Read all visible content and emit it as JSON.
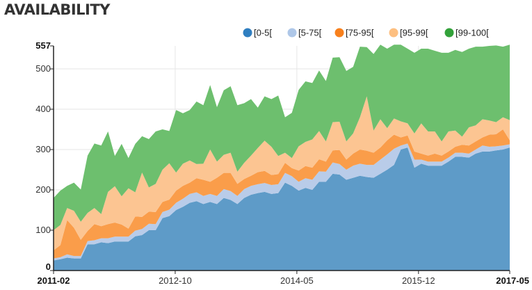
{
  "header": {
    "title": "AVAILABILITY"
  },
  "chart_data": {
    "type": "area",
    "stacked": true,
    "title": "AVAILABILITY",
    "ylim": [
      0,
      557
    ],
    "yticks": [
      0,
      100,
      200,
      300,
      400,
      500,
      557
    ],
    "ytick_labels": [
      "0",
      "100",
      "200",
      "300",
      "400",
      "500",
      "557"
    ],
    "xlim": [
      0,
      75
    ],
    "xticks": [
      {
        "pos": 0,
        "label": "2011-02",
        "bold": true
      },
      {
        "pos": 20,
        "label": "2012-10",
        "bold": false
      },
      {
        "pos": 40,
        "label": "2014-05",
        "bold": false
      },
      {
        "pos": 60,
        "label": "2015-12",
        "bold": false
      },
      {
        "pos": 75,
        "label": "2017-05",
        "bold": true
      }
    ],
    "grid": true,
    "legend_position": "top-right",
    "series": [
      {
        "name": "[0-5[",
        "color": "#5e9bc8",
        "values": [
          25,
          28,
          32,
          30,
          30,
          65,
          65,
          70,
          68,
          72,
          72,
          72,
          85,
          88,
          100,
          100,
          130,
          135,
          150,
          158,
          168,
          172,
          165,
          170,
          165,
          180,
          175,
          165,
          180,
          188,
          192,
          195,
          190,
          192,
          218,
          210,
          198,
          205,
          200,
          220,
          220,
          240,
          238,
          225,
          230,
          235,
          232,
          230,
          240,
          250,
          262,
          300,
          305,
          255,
          265,
          260,
          260,
          260,
          270,
          282,
          282,
          280,
          290,
          295,
          295,
          298,
          300,
          305
        ]
      },
      {
        "name": "[5-75[",
        "color": "#b9cce9",
        "values": [
          5,
          5,
          8,
          6,
          6,
          8,
          10,
          10,
          12,
          12,
          12,
          12,
          14,
          15,
          16,
          15,
          15,
          16,
          18,
          20,
          22,
          22,
          20,
          20,
          20,
          22,
          22,
          20,
          22,
          22,
          22,
          22,
          22,
          22,
          24,
          24,
          22,
          24,
          25,
          26,
          25,
          28,
          26,
          25,
          30,
          30,
          30,
          32,
          35,
          38,
          40,
          10,
          10,
          20,
          10,
          10,
          10,
          10,
          10,
          10,
          10,
          10,
          10,
          15,
          12,
          10,
          10,
          8
        ]
      },
      {
        "name": "[75-95[",
        "color": "#fa9d4a",
        "values": [
          20,
          30,
          85,
          70,
          40,
          25,
          40,
          30,
          35,
          35,
          30,
          20,
          35,
          30,
          30,
          30,
          25,
          25,
          30,
          32,
          28,
          35,
          40,
          30,
          45,
          40,
          45,
          30,
          25,
          25,
          30,
          30,
          25,
          25,
          25,
          20,
          28,
          30,
          30,
          30,
          25,
          30,
          35,
          25,
          30,
          35,
          35,
          30,
          30,
          35,
          35,
          20,
          20,
          20,
          15,
          15,
          20,
          15,
          15,
          15,
          20,
          20,
          20,
          20,
          30,
          30,
          40,
          10
        ]
      },
      {
        "name": "[95-99[",
        "color": "#fcc592",
        "values": [
          50,
          50,
          30,
          42,
          45,
          45,
          40,
          30,
          80,
          90,
          70,
          100,
          60,
          110,
          60,
          70,
          80,
          90,
          45,
          55,
          55,
          35,
          40,
          80,
          40,
          45,
          50,
          30,
          40,
          50,
          60,
          75,
          70,
          45,
          25,
          25,
          60,
          60,
          70,
          70,
          50,
          70,
          70,
          45,
          50,
          80,
          135,
          55,
          70,
          30,
          40,
          40,
          30,
          45,
          75,
          60,
          55,
          35,
          50,
          40,
          20,
          45,
          40,
          45,
          35,
          30,
          30,
          50
        ]
      },
      {
        "name": "[99-100[",
        "color": "#6dbf6e",
        "values": [
          80,
          85,
          55,
          70,
          80,
          142,
          160,
          170,
          150,
          75,
          130,
          75,
          120,
          90,
          120,
          130,
          100,
          80,
          155,
          125,
          125,
          155,
          145,
          160,
          135,
          160,
          165,
          165,
          148,
          140,
          100,
          110,
          118,
          150,
          88,
          112,
          140,
          150,
          140,
          150,
          150,
          160,
          160,
          175,
          165,
          175,
          122,
          190,
          185,
          197,
          183,
          190,
          185,
          200,
          185,
          205,
          200,
          220,
          195,
          200,
          210,
          195,
          195,
          180,
          185,
          190,
          175,
          187
        ]
      }
    ]
  }
}
